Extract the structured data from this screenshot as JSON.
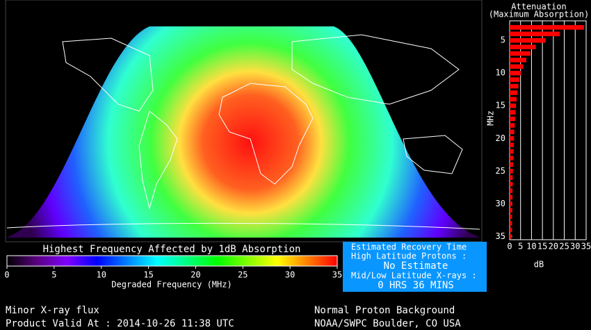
{
  "chart_data": [
    {
      "type": "colorbar",
      "title": "Highest Frequency Affected by 1dB Absorption",
      "xlabel": "Degraded Frequency (MHz)",
      "xlim": [
        0,
        35
      ],
      "xticks": [
        0,
        5,
        10,
        15,
        20,
        25,
        30,
        35
      ],
      "colors": [
        "#000000",
        "#5a0080",
        "#8000ff",
        "#0000ff",
        "#0080ff",
        "#00ffff",
        "#00ff80",
        "#00ff00",
        "#80ff00",
        "#ffff00",
        "#ff8000",
        "#ff0000"
      ]
    },
    {
      "type": "hbar",
      "title": "Attenuation",
      "subtitle": "(Maximum Absorption)",
      "xlabel": "dB",
      "ylabel": "MHz",
      "y": [
        3,
        4,
        5,
        6,
        7,
        8,
        9,
        10,
        11,
        12,
        13,
        14,
        15,
        16,
        17,
        18,
        19,
        20,
        21,
        22,
        23,
        24,
        25,
        26,
        27,
        28,
        29,
        30,
        31,
        32,
        33,
        34,
        35
      ],
      "values": [
        34,
        23,
        16.5,
        12,
        9.5,
        7.6,
        6.2,
        5.2,
        4.5,
        4,
        3.6,
        3.2,
        2.9,
        2.7,
        2.5,
        2.3,
        2.1,
        2,
        1.9,
        1.8,
        1.7,
        1.6,
        1.5,
        1.4,
        1.4,
        1.3,
        1.3,
        1.2,
        1.2,
        1.1,
        1.1,
        1.1,
        1
      ],
      "color": "#ff0000",
      "xlim": [
        0,
        35
      ],
      "xticks": [
        0,
        5,
        10,
        15,
        20,
        25,
        30,
        35
      ],
      "ylim": [
        2,
        35.5
      ],
      "yticks": [
        5,
        10,
        15,
        20,
        25,
        30,
        35
      ],
      "grid": true
    }
  ],
  "recovery": {
    "title": "Estimated Recovery Time",
    "high_label": "High Latitude Protons :",
    "high_value": "No Estimate",
    "low_label": "Mid/Low Latitude X-rays :",
    "low_value": "0 HRS 36 MINS"
  },
  "status": {
    "xray": "Minor X-ray flux",
    "valid": "Product Valid At : 2014-10-26 11:38 UTC",
    "proton": "Normal Proton Background",
    "source": "NOAA/SWPC Boulder, CO USA"
  }
}
